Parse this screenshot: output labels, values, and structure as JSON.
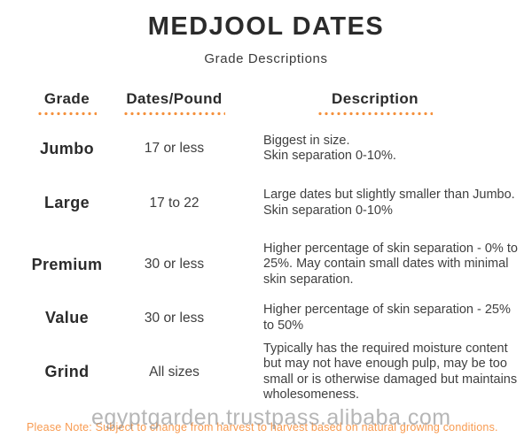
{
  "page": {
    "title": "MEDJOOL DATES",
    "subtitle": "Grade Descriptions"
  },
  "table": {
    "headers": [
      "Grade",
      "Dates/Pound",
      "Description"
    ],
    "rows": [
      {
        "grade": "Jumbo",
        "dates_per_pound": "17 or less",
        "description": [
          "Biggest in size.",
          "Skin separation 0-10%."
        ]
      },
      {
        "grade": "Large",
        "dates_per_pound": "17 to 22",
        "description": [
          "Large dates but slightly smaller than Jumbo.",
          "Skin separation 0-10%"
        ]
      },
      {
        "grade": "Premium",
        "dates_per_pound": "30 or less",
        "description": [
          "Higher percentage of skin separation - 0% to 25%. May contain small dates with minimal skin separation."
        ]
      },
      {
        "grade": "Value",
        "dates_per_pound": "30 or less",
        "description": [
          "Higher percentage of skin separation - 25% to 50%"
        ]
      },
      {
        "grade": "Grind",
        "dates_per_pound": "All sizes",
        "description": [
          "Typically has the required moisture content but may not have enough pulp, may be too small or is otherwise damaged but maintains wholesomeness."
        ]
      }
    ]
  },
  "footer": {
    "note": "Please Note: Subject to change from harvest to harvest based on natural growing conditions."
  },
  "watermark": "egyptgarden.trustpass.alibaba.com",
  "colors": {
    "accent_orange": "#F5913D",
    "note_orange": "#F89B51",
    "text_dark": "#2B2B2B",
    "text_body": "#404040",
    "watermark_gray": "#8A8A8A"
  }
}
